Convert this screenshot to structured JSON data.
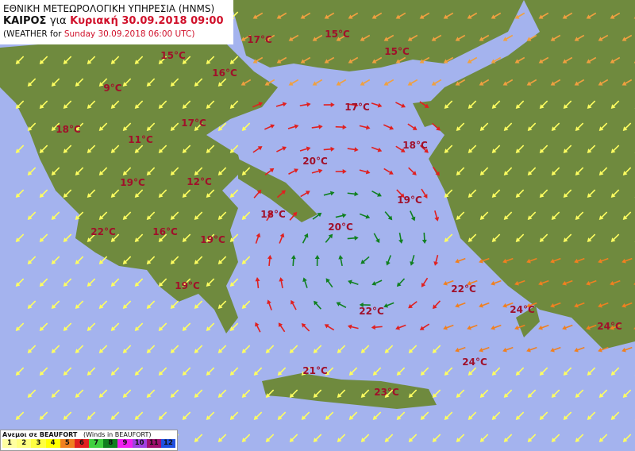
{
  "header": {
    "line1": "ΕΘΝΙΚΗ ΜΕΤΕΩΡΟΛΟΓΙΚΗ ΥΠΗΡΕΣΙΑ (HNMS)",
    "line2_prefix": "ΚΑΙΡΟΣ",
    "line2_for": "για",
    "line2_date": "Κυριακή 30.09.2018 09:00",
    "line3_prefix": "(WEATHER for",
    "line3_date": "Sunday 30.09.2018 06:00 UTC)"
  },
  "legend": {
    "title": "Ανεμοι σε BEAUFORT",
    "subtitle": "(Winds in BEAUFORT)",
    "scale": [
      {
        "label": "1",
        "color": "#ffffa0"
      },
      {
        "label": "2",
        "color": "#ffff80"
      },
      {
        "label": "3",
        "color": "#ffff40"
      },
      {
        "label": "4",
        "color": "#ffff00"
      },
      {
        "label": "5",
        "color": "#f08020"
      },
      {
        "label": "6",
        "color": "#e02020"
      },
      {
        "label": "7",
        "color": "#40d040"
      },
      {
        "label": "8",
        "color": "#108020"
      },
      {
        "label": "9",
        "color": "#f020f0"
      },
      {
        "label": "10",
        "color": "#a040e0"
      },
      {
        "label": "11",
        "color": "#a01070"
      },
      {
        "label": "12",
        "color": "#2050e0"
      }
    ]
  },
  "temperatures": [
    "15°C",
    "17°C",
    "15°C",
    "15°C",
    "16°C",
    "9°C",
    "17°C",
    "17°C",
    "18°C",
    "11°C",
    "18°C",
    "20°C",
    "12°C",
    "19°C",
    "19°C",
    "18°C",
    "20°C",
    "22°C",
    "16°C",
    "19°C",
    "19°C",
    "22°C",
    "24°C",
    "22°C",
    "24°C",
    "24°C",
    "21°C",
    "23°C"
  ],
  "colors": {
    "sea": "#a4b3ee",
    "land": "#6f8a3e",
    "temp_text": "#a0102a"
  }
}
